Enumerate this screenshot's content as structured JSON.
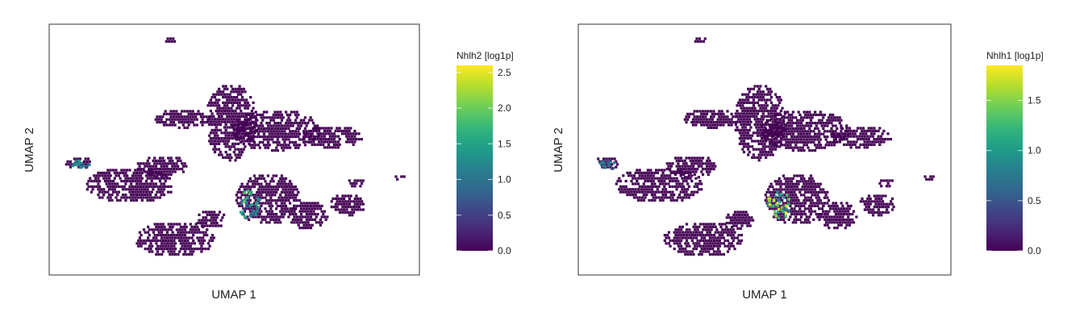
{
  "chart_data": [
    {
      "type": "scatter",
      "subtype": "umap-hexbin",
      "xlabel": "UMAP 1",
      "ylabel": "UMAP 2",
      "grid": false,
      "legend": "colorbar-right",
      "colormap": "viridis",
      "colorbar": {
        "title": "Nhlh2 [log1p]",
        "min": 0.0,
        "max": 2.6,
        "ticks": [
          "0.0",
          "0.5",
          "1.0",
          "1.5",
          "2.0",
          "2.5"
        ]
      },
      "expression_hotspots": [
        {
          "cluster": "left-island",
          "value_range": [
            0.5,
            1.5
          ]
        },
        {
          "cluster": "central-lower",
          "value_range": [
            0.5,
            2.0
          ]
        }
      ]
    },
    {
      "type": "scatter",
      "subtype": "umap-hexbin",
      "xlabel": "UMAP 1",
      "ylabel": "UMAP 2",
      "grid": false,
      "legend": "colorbar-right",
      "colormap": "viridis",
      "colorbar": {
        "title": "Nhlh1 [log1p]",
        "min": 0.0,
        "max": 1.85,
        "ticks": [
          "0.0",
          "0.5",
          "1.0",
          "1.5"
        ]
      },
      "expression_hotspots": [
        {
          "cluster": "left-island",
          "value_range": [
            0.3,
            1.0
          ]
        },
        {
          "cluster": "central-lower",
          "value_range": [
            0.5,
            1.8
          ]
        }
      ]
    }
  ],
  "colors": {
    "background_cells": "#440154",
    "viridis": [
      "#440154",
      "#482878",
      "#3e4989",
      "#31688e",
      "#26828e",
      "#1f9e89",
      "#35b779",
      "#6ece58",
      "#b5de2b",
      "#fde725"
    ]
  }
}
